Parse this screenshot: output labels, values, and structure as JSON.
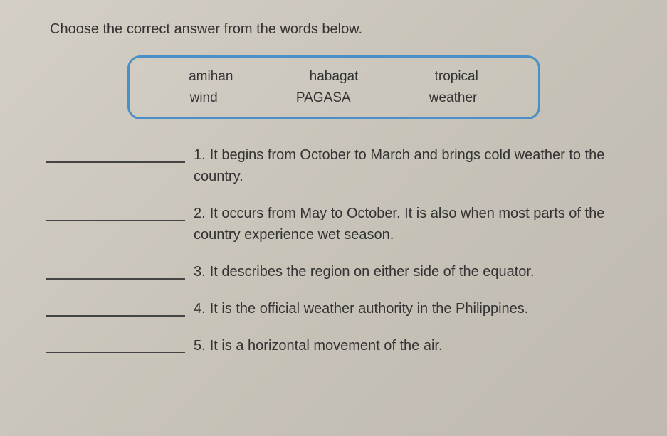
{
  "instruction": "Choose the correct answer from the words below.",
  "word_box": {
    "row1": [
      "amihan",
      "habagat",
      "tropical"
    ],
    "row2": [
      "wind",
      "PAGASA",
      "weather"
    ]
  },
  "questions": [
    {
      "num": "1.",
      "text": "It begins from October to March and brings cold weather to the country."
    },
    {
      "num": "2.",
      "text": "It occurs from May to October. It is also when most parts of the country experience wet season."
    },
    {
      "num": "3.",
      "text": "It describes the region on either side of the equator."
    },
    {
      "num": "4.",
      "text": "It is the official weather authority in the Philippines."
    },
    {
      "num": "5.",
      "text": "It is a horizontal movement of the air."
    }
  ],
  "colors": {
    "background": "#c8c3b8",
    "box_border": "#4a8fc7",
    "text": "#333333",
    "line": "#444444"
  }
}
